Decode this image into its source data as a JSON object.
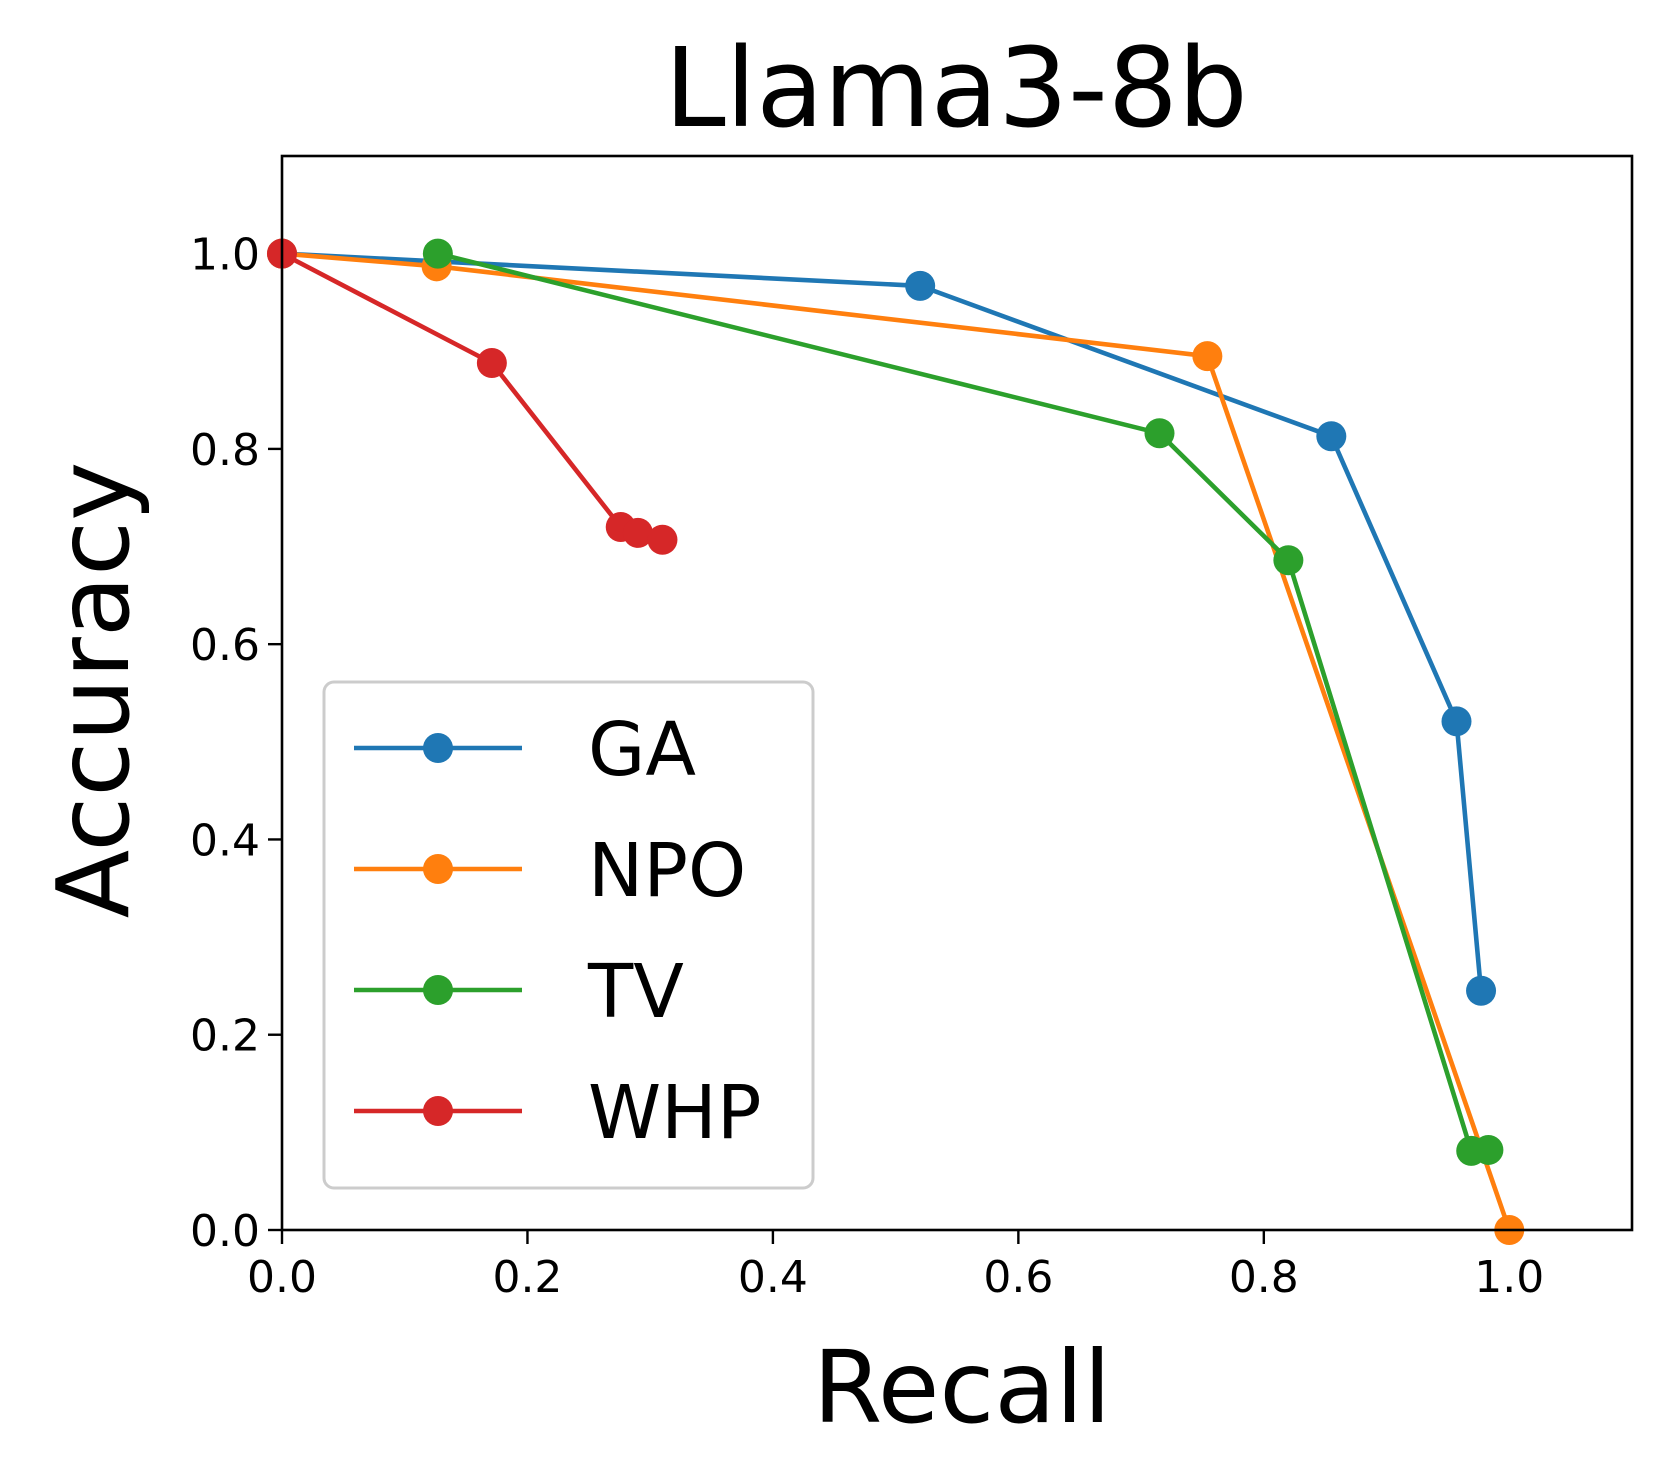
{
  "chart_data": {
    "type": "line",
    "title": "Llama3-8b",
    "xlabel": "Recall",
    "ylabel": "Accuracy",
    "xlim": [
      0.0,
      1.1
    ],
    "ylim": [
      0.0,
      1.1
    ],
    "xticks": [
      0.0,
      0.2,
      0.4,
      0.6,
      0.8,
      1.0
    ],
    "yticks": [
      0.0,
      0.2,
      0.4,
      0.6,
      0.8,
      1.0
    ],
    "xtick_labels": [
      "0.0",
      "0.2",
      "0.4",
      "0.6",
      "0.8",
      "1.0"
    ],
    "ytick_labels": [
      "0.0",
      "0.2",
      "0.4",
      "0.6",
      "0.8",
      "1.0"
    ],
    "grid": false,
    "legend_position": "lower-left",
    "series": [
      {
        "name": "GA",
        "color": "#1f77b4",
        "x": [
          0.0,
          0.52,
          0.855,
          0.957,
          0.977
        ],
        "y": [
          1.0,
          0.967,
          0.813,
          0.521,
          0.245
        ]
      },
      {
        "name": "NPO",
        "color": "#ff7f0e",
        "x": [
          0.0,
          0.126,
          0.754,
          1.0
        ],
        "y": [
          1.0,
          0.987,
          0.895,
          0.0
        ]
      },
      {
        "name": "TV",
        "color": "#2ca02c",
        "x": [
          0.127,
          0.715,
          0.82,
          0.969,
          0.983
        ],
        "y": [
          1.0,
          0.816,
          0.686,
          0.081,
          0.082
        ]
      },
      {
        "name": "WHP",
        "color": "#d62728",
        "x": [
          0.0,
          0.171,
          0.276,
          0.29,
          0.31
        ],
        "y": [
          1.0,
          0.888,
          0.72,
          0.714,
          0.707
        ]
      }
    ]
  }
}
